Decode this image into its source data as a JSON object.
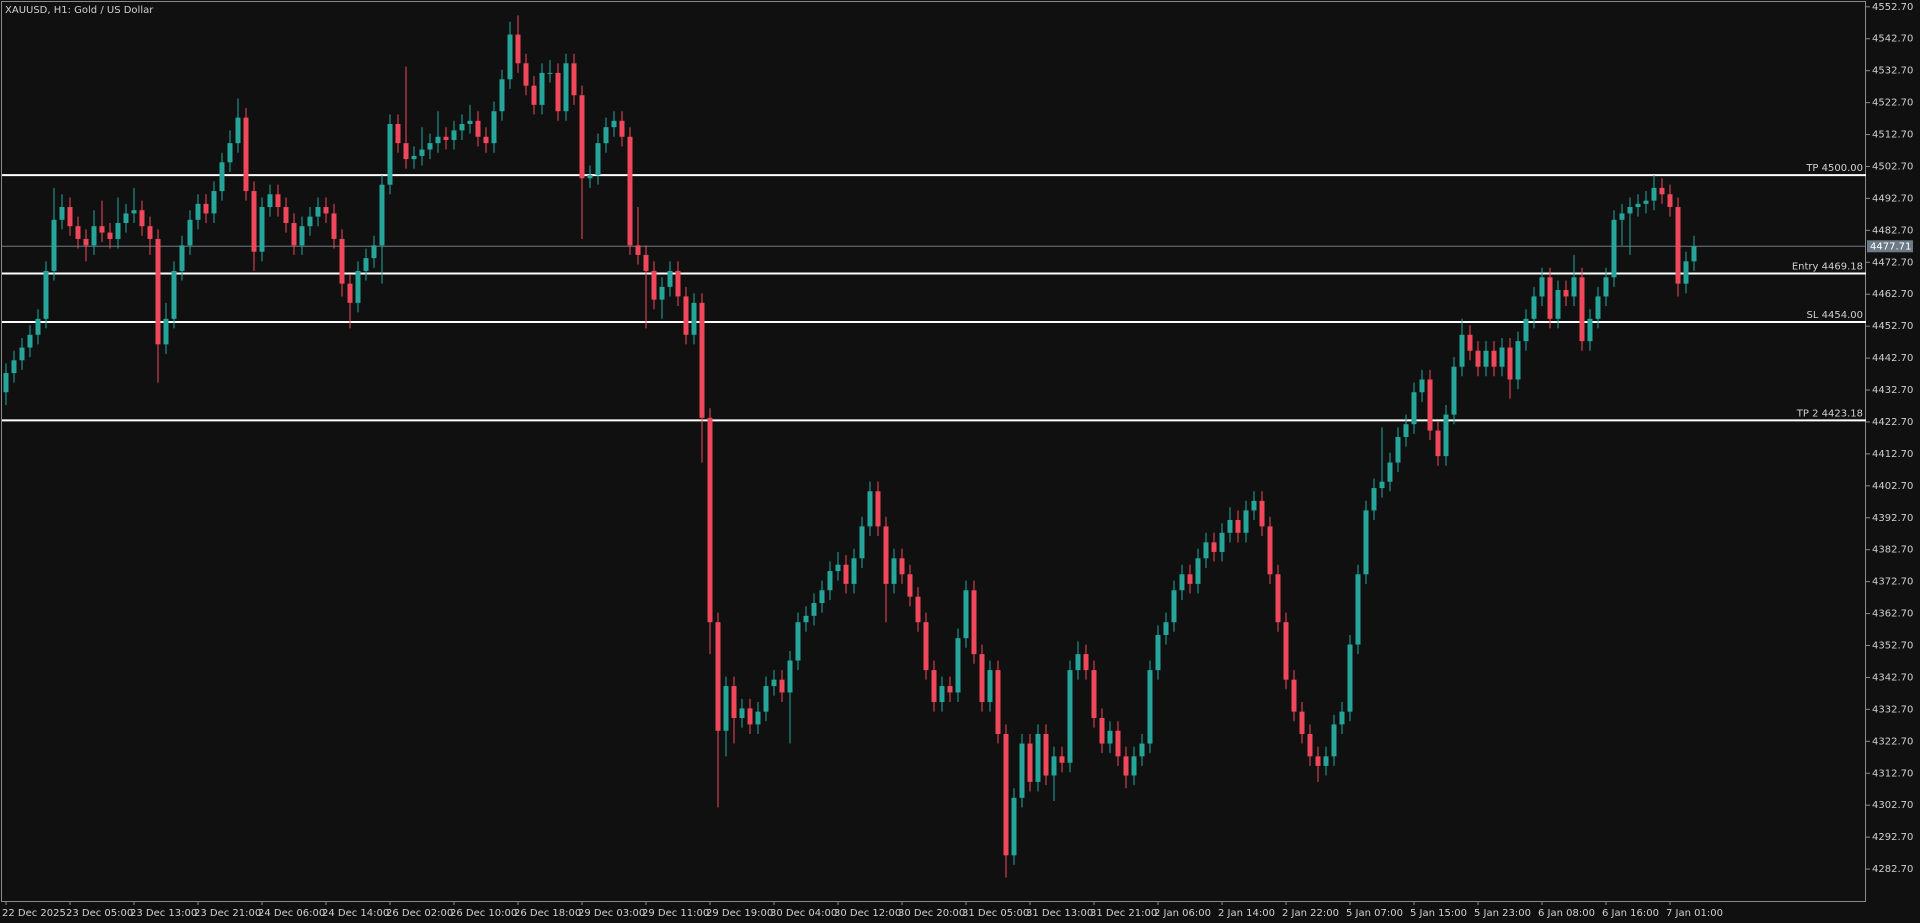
{
  "chart_data": {
    "type": "candlestick",
    "title": "XAUUSD, H1:  Gold / US Dollar",
    "up_color": "#26a69a",
    "down_color": "#f0485a",
    "ylim": [
      4272.7,
      4554.2
    ],
    "yticks": [
      {
        "value": 4282.7,
        "label": "4282.70"
      },
      {
        "value": 4292.7,
        "label": "4292.70"
      },
      {
        "value": 4302.7,
        "label": "4302.70"
      },
      {
        "value": 4312.7,
        "label": "4312.70"
      },
      {
        "value": 4322.7,
        "label": "4322.70"
      },
      {
        "value": 4332.7,
        "label": "4332.70"
      },
      {
        "value": 4342.7,
        "label": "4342.70"
      },
      {
        "value": 4352.7,
        "label": "4352.70"
      },
      {
        "value": 4362.7,
        "label": "4362.70"
      },
      {
        "value": 4372.7,
        "label": "4372.70"
      },
      {
        "value": 4382.7,
        "label": "4382.70"
      },
      {
        "value": 4392.7,
        "label": "4392.70"
      },
      {
        "value": 4402.7,
        "label": "4402.70"
      },
      {
        "value": 4412.7,
        "label": "4412.70"
      },
      {
        "value": 4422.7,
        "label": "4422.70"
      },
      {
        "value": 4432.7,
        "label": "4432.70"
      },
      {
        "value": 4442.7,
        "label": "4442.70"
      },
      {
        "value": 4452.7,
        "label": "4452.70"
      },
      {
        "value": 4462.7,
        "label": "4462.70"
      },
      {
        "value": 4472.7,
        "label": "4472.70"
      },
      {
        "value": 4482.7,
        "label": "4482.70"
      },
      {
        "value": 4492.7,
        "label": "4492.70"
      },
      {
        "value": 4502.7,
        "label": "4502.70"
      },
      {
        "value": 4512.7,
        "label": "4512.70"
      },
      {
        "value": 4522.7,
        "label": "4522.70"
      },
      {
        "value": 4532.7,
        "label": "4532.70"
      },
      {
        "value": 4542.7,
        "label": "4542.70"
      },
      {
        "value": 4552.7,
        "label": "4552.70"
      }
    ],
    "xlabels": [
      "22 Dec 2025",
      "23 Dec 05:00",
      "23 Dec 13:00",
      "23 Dec 21:00",
      "24 Dec 06:00",
      "24 Dec 14:00",
      "26 Dec 02:00",
      "26 Dec 10:00",
      "26 Dec 18:00",
      "29 Dec 03:00",
      "29 Dec 11:00",
      "29 Dec 19:00",
      "30 Dec 04:00",
      "30 Dec 12:00",
      "30 Dec 20:00",
      "31 Dec 05:00",
      "31 Dec 13:00",
      "31 Dec 21:00",
      "2 Jan 06:00",
      "2 Jan 14:00",
      "2 Jan 22:00",
      "5 Jan 07:00",
      "5 Jan 15:00",
      "5 Jan 23:00",
      "6 Jan 08:00",
      "6 Jan 16:00",
      "7 Jan 01:00"
    ],
    "levels": [
      {
        "label": "TP 4500.00",
        "price": 4500.0
      },
      {
        "label": "Entry 4469.18",
        "price": 4469.18
      },
      {
        "label": "SL 4454.00",
        "price": 4454.0
      },
      {
        "label": "TP 2 4423.18",
        "price": 4423.18
      }
    ],
    "current_price": {
      "label": "4477.71",
      "price": 4477.71
    },
    "candles": [
      [
        4432,
        4441,
        4428,
        4438
      ],
      [
        4438,
        4445,
        4435,
        4442
      ],
      [
        4442,
        4449,
        4439,
        4446
      ],
      [
        4446,
        4453,
        4443,
        4450
      ],
      [
        4450,
        4458,
        4447,
        4455
      ],
      [
        4455,
        4473,
        4452,
        4470
      ],
      [
        4470,
        4496,
        4467,
        4486
      ],
      [
        4486,
        4494,
        4483,
        4490
      ],
      [
        4490,
        4493,
        4481,
        4484
      ],
      [
        4484,
        4487,
        4477,
        4480
      ],
      [
        4480,
        4483,
        4473,
        4478
      ],
      [
        4478,
        4489,
        4475,
        4484
      ],
      [
        4484,
        4492,
        4479,
        4482
      ],
      [
        4482,
        4485,
        4477,
        4480
      ],
      [
        4480,
        4493,
        4477,
        4485
      ],
      [
        4485,
        4491,
        4482,
        4488
      ],
      [
        4488,
        4496,
        4485,
        4489
      ],
      [
        4489,
        4492,
        4481,
        4484
      ],
      [
        4484,
        4487,
        4475,
        4480
      ],
      [
        4480,
        4483,
        4435,
        4447
      ],
      [
        4447,
        4460,
        4444,
        4455
      ],
      [
        4455,
        4473,
        4452,
        4470
      ],
      [
        4470,
        4481,
        4467,
        4478
      ],
      [
        4478,
        4489,
        4475,
        4486
      ],
      [
        4486,
        4494,
        4483,
        4491
      ],
      [
        4491,
        4494,
        4485,
        4488
      ],
      [
        4488,
        4498,
        4485,
        4495
      ],
      [
        4495,
        4507,
        4492,
        4504
      ],
      [
        4504,
        4514,
        4501,
        4510
      ],
      [
        4510,
        4524,
        4507,
        4518
      ],
      [
        4518,
        4521,
        4492,
        4495
      ],
      [
        4495,
        4498,
        4470,
        4476
      ],
      [
        4476,
        4493,
        4473,
        4490
      ],
      [
        4490,
        4497,
        4487,
        4494
      ],
      [
        4494,
        4497,
        4487,
        4490
      ],
      [
        4490,
        4493,
        4482,
        4485
      ],
      [
        4485,
        4488,
        4475,
        4478
      ],
      [
        4478,
        4487,
        4475,
        4484
      ],
      [
        4484,
        4490,
        4481,
        4487
      ],
      [
        4487,
        4493,
        4484,
        4490
      ],
      [
        4490,
        4493,
        4485,
        4488
      ],
      [
        4488,
        4491,
        4477,
        4480
      ],
      [
        4480,
        4483,
        4462,
        4466
      ],
      [
        4466,
        4469,
        4452,
        4460
      ],
      [
        4460,
        4473,
        4457,
        4470
      ],
      [
        4470,
        4477,
        4467,
        4474
      ],
      [
        4474,
        4481,
        4471,
        4478
      ],
      [
        4478,
        4500,
        4466,
        4497
      ],
      [
        4497,
        4519,
        4494,
        4516
      ],
      [
        4516,
        4519,
        4507,
        4510
      ],
      [
        4510,
        4534,
        4502,
        4505
      ],
      [
        4505,
        4509,
        4502,
        4506
      ],
      [
        4506,
        4515,
        4503,
        4508
      ],
      [
        4508,
        4513,
        4505,
        4510
      ],
      [
        4510,
        4520,
        4507,
        4512
      ],
      [
        4512,
        4515,
        4508,
        4511
      ],
      [
        4511,
        4517,
        4508,
        4514
      ],
      [
        4514,
        4519,
        4511,
        4516
      ],
      [
        4516,
        4522,
        4513,
        4517
      ],
      [
        4517,
        4520,
        4509,
        4512
      ],
      [
        4512,
        4515,
        4507,
        4510
      ],
      [
        4510,
        4523,
        4507,
        4520
      ],
      [
        4520,
        4533,
        4517,
        4530
      ],
      [
        4530,
        4548,
        4527,
        4544
      ],
      [
        4544,
        4550,
        4532,
        4535
      ],
      [
        4535,
        4538,
        4525,
        4528
      ],
      [
        4528,
        4531,
        4519,
        4522
      ],
      [
        4522,
        4535,
        4519,
        4532
      ],
      [
        4532,
        4536,
        4529,
        4532
      ],
      [
        4532,
        4535,
        4517,
        4520
      ],
      [
        4520,
        4538,
        4517,
        4535
      ],
      [
        4535,
        4538,
        4522,
        4525
      ],
      [
        4525,
        4528,
        4480,
        4499
      ],
      [
        4499,
        4503,
        4496,
        4500
      ],
      [
        4500,
        4513,
        4497,
        4510
      ],
      [
        4510,
        4518,
        4507,
        4515
      ],
      [
        4515,
        4520,
        4512,
        4517
      ],
      [
        4517,
        4520,
        4509,
        4512
      ],
      [
        4512,
        4515,
        4475,
        4478
      ],
      [
        4478,
        4490,
        4472,
        4475
      ],
      [
        4475,
        4478,
        4452,
        4470
      ],
      [
        4470,
        4473,
        4458,
        4461
      ],
      [
        4461,
        4468,
        4455,
        4465
      ],
      [
        4465,
        4473,
        4462,
        4470
      ],
      [
        4470,
        4473,
        4459,
        4462
      ],
      [
        4462,
        4465,
        4447,
        4450
      ],
      [
        4450,
        4463,
        4447,
        4460
      ],
      [
        4460,
        4463,
        4410,
        4424
      ],
      [
        4424,
        4427,
        4350,
        4360
      ],
      [
        4360,
        4363,
        4302,
        4326
      ],
      [
        4326,
        4343,
        4318,
        4340
      ],
      [
        4340,
        4343,
        4322,
        4330
      ],
      [
        4330,
        4336,
        4327,
        4333
      ],
      [
        4333,
        4336,
        4325,
        4328
      ],
      [
        4328,
        4335,
        4325,
        4332
      ],
      [
        4332,
        4343,
        4329,
        4340
      ],
      [
        4340,
        4345,
        4337,
        4342
      ],
      [
        4342,
        4345,
        4335,
        4338
      ],
      [
        4338,
        4351,
        4322,
        4348
      ],
      [
        4348,
        4363,
        4345,
        4360
      ],
      [
        4360,
        4365,
        4357,
        4362
      ],
      [
        4362,
        4369,
        4359,
        4366
      ],
      [
        4366,
        4373,
        4363,
        4370
      ],
      [
        4370,
        4379,
        4367,
        4376
      ],
      [
        4376,
        4382,
        4373,
        4378
      ],
      [
        4378,
        4381,
        4369,
        4372
      ],
      [
        4372,
        4383,
        4369,
        4380
      ],
      [
        4380,
        4393,
        4377,
        4390
      ],
      [
        4390,
        4404,
        4387,
        4401
      ],
      [
        4401,
        4404,
        4387,
        4390
      ],
      [
        4390,
        4393,
        4360,
        4372
      ],
      [
        4372,
        4383,
        4369,
        4380
      ],
      [
        4380,
        4383,
        4372,
        4375
      ],
      [
        4375,
        4378,
        4365,
        4368
      ],
      [
        4368,
        4371,
        4357,
        4360
      ],
      [
        4360,
        4363,
        4342,
        4345
      ],
      [
        4345,
        4348,
        4332,
        4335
      ],
      [
        4335,
        4343,
        4332,
        4340
      ],
      [
        4340,
        4343,
        4335,
        4338
      ],
      [
        4338,
        4358,
        4335,
        4355
      ],
      [
        4355,
        4373,
        4352,
        4370
      ],
      [
        4370,
        4373,
        4347,
        4350
      ],
      [
        4350,
        4353,
        4332,
        4335
      ],
      [
        4335,
        4348,
        4332,
        4345
      ],
      [
        4345,
        4348,
        4322,
        4325
      ],
      [
        4325,
        4328,
        4280,
        4287
      ],
      [
        4287,
        4308,
        4284,
        4305
      ],
      [
        4305,
        4325,
        4302,
        4322
      ],
      [
        4322,
        4325,
        4307,
        4310
      ],
      [
        4310,
        4328,
        4307,
        4325
      ],
      [
        4325,
        4328,
        4309,
        4312
      ],
      [
        4312,
        4321,
        4304,
        4318
      ],
      [
        4318,
        4321,
        4313,
        4316
      ],
      [
        4316,
        4348,
        4313,
        4345
      ],
      [
        4345,
        4354,
        4342,
        4350
      ],
      [
        4350,
        4353,
        4342,
        4345
      ],
      [
        4345,
        4348,
        4327,
        4330
      ],
      [
        4330,
        4333,
        4319,
        4322
      ],
      [
        4322,
        4329,
        4319,
        4326
      ],
      [
        4326,
        4329,
        4315,
        4318
      ],
      [
        4318,
        4321,
        4308,
        4312
      ],
      [
        4312,
        4321,
        4309,
        4318
      ],
      [
        4318,
        4325,
        4315,
        4322
      ],
      [
        4322,
        4348,
        4319,
        4345
      ],
      [
        4345,
        4359,
        4342,
        4356
      ],
      [
        4356,
        4363,
        4353,
        4360
      ],
      [
        4360,
        4373,
        4357,
        4370
      ],
      [
        4370,
        4378,
        4367,
        4375
      ],
      [
        4375,
        4378,
        4369,
        4372
      ],
      [
        4372,
        4383,
        4369,
        4380
      ],
      [
        4380,
        4388,
        4377,
        4385
      ],
      [
        4385,
        4388,
        4379,
        4382
      ],
      [
        4382,
        4391,
        4379,
        4388
      ],
      [
        4388,
        4396,
        4385,
        4392
      ],
      [
        4392,
        4395,
        4385,
        4388
      ],
      [
        4388,
        4398,
        4385,
        4395
      ],
      [
        4395,
        4401,
        4392,
        4398
      ],
      [
        4398,
        4401,
        4387,
        4390
      ],
      [
        4390,
        4393,
        4372,
        4375
      ],
      [
        4375,
        4378,
        4357,
        4360
      ],
      [
        4360,
        4363,
        4339,
        4342
      ],
      [
        4342,
        4345,
        4329,
        4332
      ],
      [
        4332,
        4335,
        4322,
        4325
      ],
      [
        4325,
        4328,
        4315,
        4318
      ],
      [
        4318,
        4321,
        4310,
        4315
      ],
      [
        4315,
        4321,
        4312,
        4318
      ],
      [
        4318,
        4331,
        4315,
        4328
      ],
      [
        4328,
        4335,
        4325,
        4332
      ],
      [
        4332,
        4356,
        4329,
        4353
      ],
      [
        4353,
        4378,
        4350,
        4375
      ],
      [
        4375,
        4398,
        4372,
        4395
      ],
      [
        4395,
        4405,
        4392,
        4402
      ],
      [
        4402,
        4421,
        4399,
        4404
      ],
      [
        4404,
        4413,
        4401,
        4410
      ],
      [
        4410,
        4421,
        4407,
        4418
      ],
      [
        4418,
        4425,
        4415,
        4422
      ],
      [
        4422,
        4435,
        4419,
        4432
      ],
      [
        4432,
        4439,
        4429,
        4436
      ],
      [
        4436,
        4439,
        4417,
        4420
      ],
      [
        4420,
        4423,
        4409,
        4412
      ],
      [
        4412,
        4428,
        4409,
        4425
      ],
      [
        4425,
        4443,
        4422,
        4440
      ],
      [
        4440,
        4455,
        4437,
        4450
      ],
      [
        4450,
        4453,
        4442,
        4445
      ],
      [
        4445,
        4448,
        4437,
        4440
      ],
      [
        4440,
        4448,
        4437,
        4445
      ],
      [
        4445,
        4448,
        4437,
        4440
      ],
      [
        4440,
        4449,
        4437,
        4446
      ],
      [
        4446,
        4449,
        4430,
        4436
      ],
      [
        4436,
        4451,
        4433,
        4448
      ],
      [
        4448,
        4458,
        4445,
        4455
      ],
      [
        4455,
        4465,
        4452,
        4462
      ],
      [
        4462,
        4471,
        4459,
        4468
      ],
      [
        4468,
        4471,
        4452,
        4455
      ],
      [
        4455,
        4467,
        4452,
        4464
      ],
      [
        4464,
        4467,
        4459,
        4462
      ],
      [
        4462,
        4475,
        4459,
        4468
      ],
      [
        4468,
        4471,
        4445,
        4448
      ],
      [
        4448,
        4458,
        4445,
        4455
      ],
      [
        4455,
        4465,
        4452,
        4462
      ],
      [
        4462,
        4471,
        4459,
        4468
      ],
      [
        4468,
        4489,
        4465,
        4486
      ],
      [
        4486,
        4491,
        4478,
        4488
      ],
      [
        4488,
        4493,
        4475,
        4490
      ],
      [
        4490,
        4494,
        4487,
        4491
      ],
      [
        4491,
        4495,
        4488,
        4492
      ],
      [
        4492,
        4500,
        4489,
        4496
      ],
      [
        4496,
        4499,
        4491,
        4494
      ],
      [
        4494,
        4497,
        4487,
        4490
      ],
      [
        4490,
        4493,
        4462,
        4466
      ],
      [
        4466,
        4476,
        4463,
        4473
      ],
      [
        4473,
        4481,
        4470,
        4477.71
      ]
    ]
  }
}
